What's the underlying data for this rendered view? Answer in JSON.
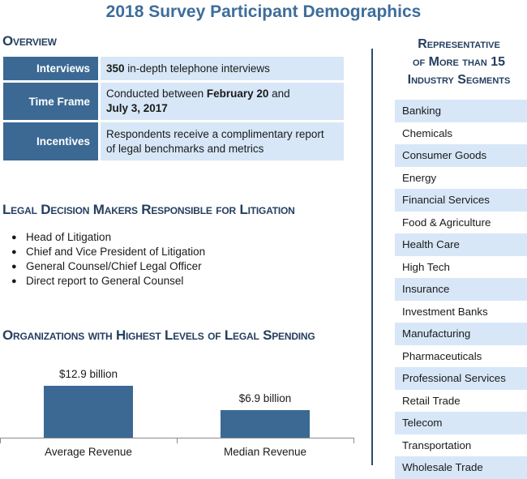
{
  "title": "2018 Survey Participant Demographics",
  "overview": {
    "heading": "Overview",
    "rows": [
      {
        "label": "Interviews",
        "line1_bold": "350",
        "line1_rest": " in-depth telephone interviews",
        "line2_bold": ""
      },
      {
        "label": "Time Frame",
        "line1_pre": "Conducted between ",
        "line1_bold": "February 20",
        "line1_rest": " and",
        "line2_bold": "July 3, 2017"
      },
      {
        "label": "Incentives",
        "line1": "Respondents receive a complimentary report",
        "line2": "of legal benchmarks and metrics"
      }
    ]
  },
  "decision_makers": {
    "heading": "Legal Decision Makers Responsible for Litigation",
    "items": [
      "Head of Litigation",
      "Chief and Vice President of Litigation",
      "General Counsel/Chief Legal Officer",
      "Direct report to General Counsel"
    ]
  },
  "spending": {
    "heading": "Organizations with Highest Levels of Legal Spending"
  },
  "chart_data": {
    "type": "bar",
    "categories": [
      "Average Revenue",
      "Median Revenue"
    ],
    "values": [
      12.9,
      6.9
    ],
    "data_labels": [
      "$12.9 billion",
      "$6.9 billion"
    ],
    "unit": "billion USD",
    "color": "#3b6994"
  },
  "industries": {
    "heading_lines": [
      "Representative",
      "of More than 15",
      "Industry Segments"
    ],
    "items": [
      "Banking",
      "Chemicals",
      "Consumer Goods",
      "Energy",
      "Financial Services",
      "Food & Agriculture",
      "Health Care",
      "High Tech",
      "Insurance",
      "Investment Banks",
      "Manufacturing",
      "Pharmaceuticals",
      "Professional Services",
      "Retail Trade",
      "Telecom",
      "Transportation",
      "Wholesale Trade"
    ]
  },
  "colors": {
    "accent": "#3b6994",
    "title": "#3d6d9b",
    "heading": "#243f60",
    "shade": "#d7e7f7"
  }
}
